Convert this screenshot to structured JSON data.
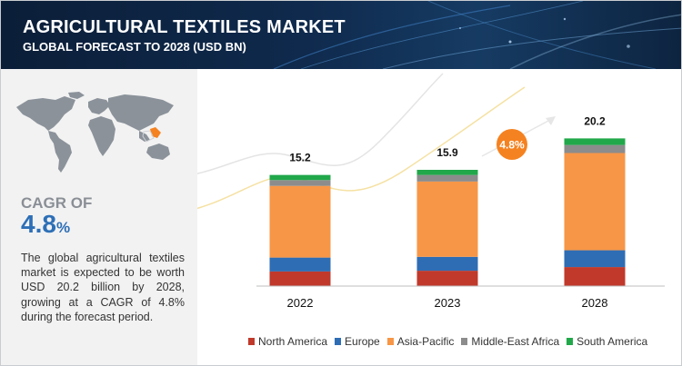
{
  "header": {
    "title": "AGRICULTURAL TEXTILES MARKET",
    "subtitle": "GLOBAL FORECAST TO 2028 (USD BN)"
  },
  "info": {
    "cagr_label": "CAGR OF",
    "cagr_value": "4.8",
    "cagr_unit": "%",
    "description": "The global agricultural textiles market is expected to be worth USD 20.2 billion by 2028, growing at a CAGR of 4.8% during the forecast period."
  },
  "colors": {
    "header_bg": "#0f2a4d",
    "panel_bg": "#f2f2f2",
    "cagr_blue": "#2d6fb7",
    "cagr_badge": "#f58220"
  },
  "chart_data": {
    "type": "bar",
    "stacked": true,
    "categories": [
      "2022",
      "2023",
      "2028"
    ],
    "totals": [
      15.2,
      15.9,
      20.2
    ],
    "series": [
      {
        "name": "North America",
        "color": "#c0392b",
        "values": [
          2.0,
          2.1,
          2.6
        ]
      },
      {
        "name": "Europe",
        "color": "#2e6db4",
        "values": [
          1.9,
          1.9,
          2.3
        ]
      },
      {
        "name": "Asia-Pacific",
        "color": "#f79646",
        "values": [
          9.8,
          10.3,
          13.3
        ]
      },
      {
        "name": "Middle-East Africa",
        "color": "#8c8c8c",
        "values": [
          0.8,
          0.9,
          1.1
        ]
      },
      {
        "name": "South America",
        "color": "#21a84a",
        "values": [
          0.7,
          0.7,
          0.9
        ]
      }
    ],
    "annotation": "4.8%",
    "grid": false,
    "legend_position": "bottom"
  }
}
